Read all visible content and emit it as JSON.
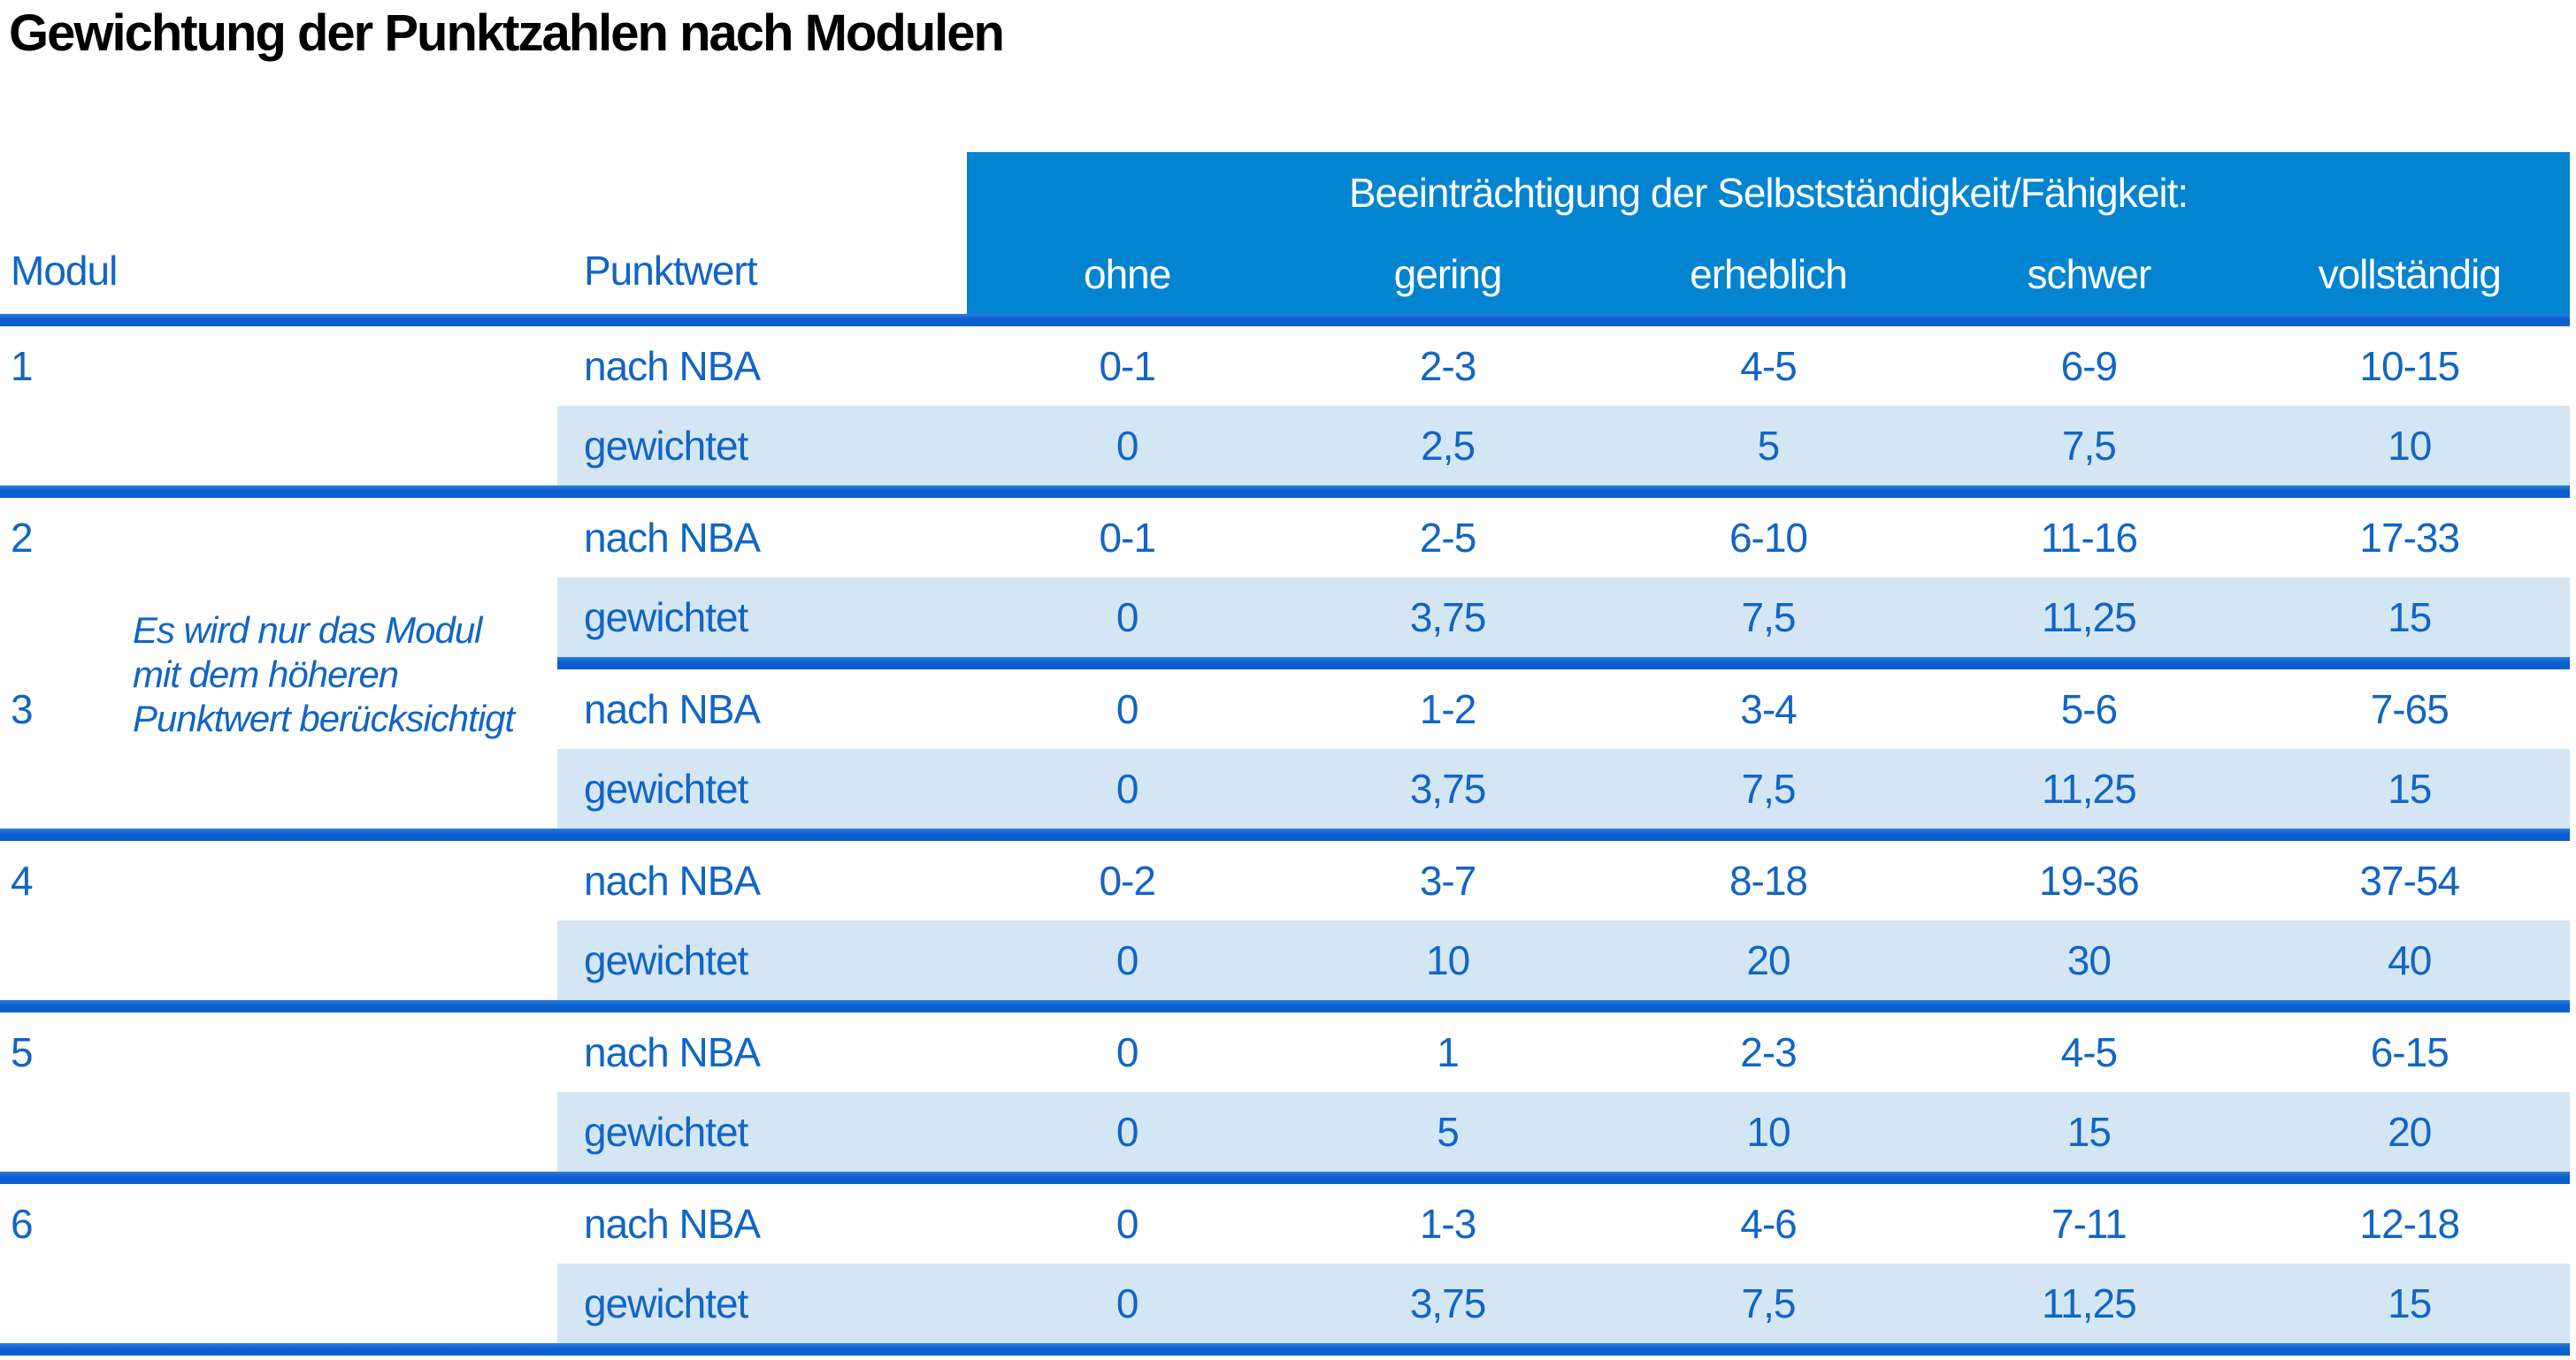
{
  "title": "Gewichtung der Punktzahlen nach Modulen",
  "colors": {
    "header_bg": "#0284d0",
    "row_alt_bg": "#d4e6f3",
    "divider": "#0a5ecf",
    "divider_top": "#2f7cd9",
    "text_blue": "#1165c5",
    "banner_text": "#ffffff",
    "title_color": "#000000",
    "page_bg": "#ffffff"
  },
  "table": {
    "banner": "Beeinträchtigung der Selbstständigkeit/Fähigkeit:",
    "col_headers": {
      "modul": "Modul",
      "punktwert": "Punktwert",
      "levels": [
        "ohne",
        "gering",
        "erheblich",
        "schwer",
        "vollständig"
      ]
    },
    "row_labels": {
      "raw": "nach NBA",
      "weighted": "gewichtet"
    },
    "note_lines": [
      "Es wird nur das Modul",
      "mit dem höheren",
      "Punktwert berücksichtigt"
    ],
    "modules": [
      {
        "id": "1",
        "nach_nba": [
          "0-1",
          "2-3",
          "4-5",
          "6-9",
          "10-15"
        ],
        "gewichtet": [
          "0",
          "2,5",
          "5",
          "7,5",
          "10"
        ]
      },
      {
        "id": "2",
        "nach_nba": [
          "0-1",
          "2-5",
          "6-10",
          "11-16",
          "17-33"
        ],
        "gewichtet": [
          "0",
          "3,75",
          "7,5",
          "11,25",
          "15"
        ]
      },
      {
        "id": "3",
        "nach_nba": [
          "0",
          "1-2",
          "3-4",
          "5-6",
          "7-65"
        ],
        "gewichtet": [
          "0",
          "3,75",
          "7,5",
          "11,25",
          "15"
        ]
      },
      {
        "id": "4",
        "nach_nba": [
          "0-2",
          "3-7",
          "8-18",
          "19-36",
          "37-54"
        ],
        "gewichtet": [
          "0",
          "10",
          "20",
          "30",
          "40"
        ]
      },
      {
        "id": "5",
        "nach_nba": [
          "0",
          "1",
          "2-3",
          "4-5",
          "6-15"
        ],
        "gewichtet": [
          "0",
          "5",
          "10",
          "15",
          "20"
        ]
      },
      {
        "id": "6",
        "nach_nba": [
          "0",
          "1-3",
          "4-6",
          "7-11",
          "12-18"
        ],
        "gewichtet": [
          "0",
          "3,75",
          "7,5",
          "11,25",
          "15"
        ]
      }
    ]
  }
}
